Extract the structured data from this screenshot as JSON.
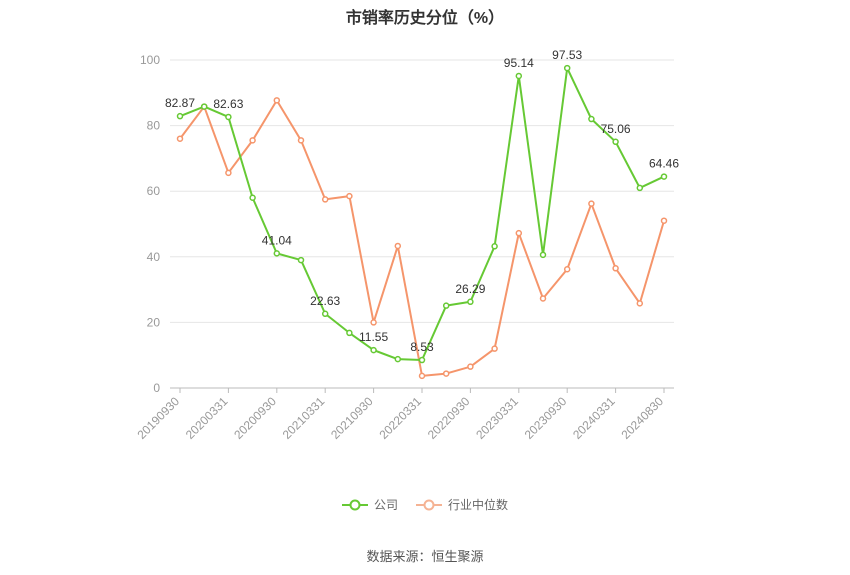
{
  "chart_data": {
    "type": "line",
    "title": "市销率历史分位（%）",
    "ylim": [
      0,
      100
    ],
    "yticks": [
      "0",
      "20",
      "40",
      "60",
      "80",
      "100"
    ],
    "grid": true,
    "legend_position": "bottom",
    "x_tick_labels": [
      "20190930",
      "20200331",
      "20200930",
      "20210331",
      "20210930",
      "20220331",
      "20220930",
      "20230331",
      "20230930",
      "20240331",
      "20240830"
    ],
    "x": [
      "20190930",
      "20191231",
      "20200331",
      "20200630",
      "20200930",
      "20201231",
      "20210331",
      "20210630",
      "20210930",
      "20211231",
      "20220331",
      "20220630",
      "20220930",
      "20221231",
      "20230331",
      "20230630",
      "20230930",
      "20231231",
      "20240331",
      "20240630",
      "20240830"
    ],
    "series": [
      {
        "name": "公司",
        "color": "#66c934",
        "values": [
          82.87,
          85.8,
          82.63,
          58.0,
          41.04,
          39.0,
          22.63,
          16.8,
          11.55,
          8.8,
          8.53,
          25.1,
          26.29,
          43.2,
          95.14,
          40.6,
          97.53,
          82.0,
          75.06,
          61.0,
          64.46
        ],
        "labels": {
          "0": "82.87",
          "2": "82.63",
          "4": "41.04",
          "6": "22.63",
          "8": "11.55",
          "10": "8.53",
          "12": "26.29",
          "14": "95.14",
          "16": "97.53",
          "18": "75.06",
          "20": "64.46"
        }
      },
      {
        "name": "行业中位数",
        "color": "#f5956b",
        "values": [
          76.0,
          85.8,
          65.6,
          75.5,
          87.7,
          75.5,
          57.5,
          58.5,
          20.0,
          43.3,
          3.7,
          4.4,
          6.5,
          12.0,
          47.2,
          27.3,
          36.2,
          56.2,
          36.5,
          25.8,
          51.0
        ]
      }
    ]
  },
  "source_text": "数据来源：恒生聚源"
}
